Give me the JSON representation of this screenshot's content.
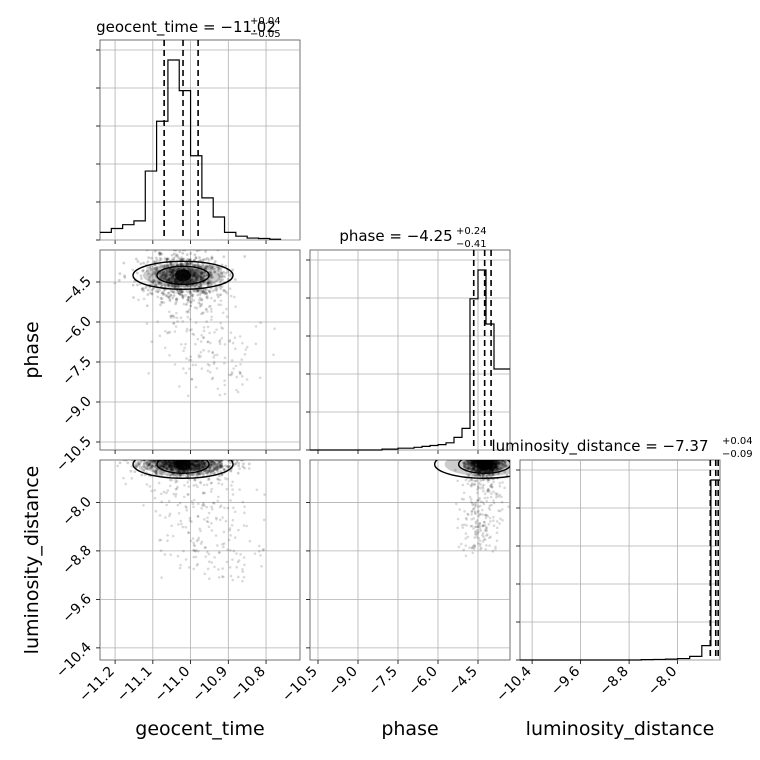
{
  "chart_data": {
    "type": "corner",
    "parameters": [
      "geocent_time",
      "phase",
      "luminosity_distance"
    ],
    "titles": [
      {
        "param": "geocent_time",
        "text": "geocent_time = −11.02",
        "plus": "+0.04",
        "minus": "−0.05"
      },
      {
        "param": "phase",
        "text": "phase = −4.25",
        "plus": "+0.24",
        "minus": "−0.41"
      },
      {
        "param": "luminosity_distance",
        "text": "luminosity_distance = −7.37",
        "plus": "+0.04",
        "minus": "−0.09"
      }
    ],
    "axes": {
      "geocent_time": {
        "range": [
          -11.24,
          -10.71
        ],
        "ticks": [
          -11.2,
          -11.1,
          -11.0,
          -10.9,
          -10.8
        ],
        "tick_labels": [
          "−11.2",
          "−11.1",
          "−11.0",
          "−10.9",
          "−10.8"
        ]
      },
      "phase": {
        "range": [
          -10.8,
          -3.3
        ],
        "ticks": [
          -10.5,
          -9.0,
          -7.5,
          -6.0,
          -4.5
        ],
        "tick_labels": [
          "−10.5",
          "−9.0",
          "−7.5",
          "−6.0",
          "−4.5"
        ]
      },
      "luminosity_distance": {
        "range": [
          -10.6,
          -7.3
        ],
        "ticks": [
          -10.4,
          -9.6,
          -8.8,
          -8.0
        ],
        "tick_labels": [
          "−10.4",
          "−9.6",
          "−8.8",
          "−8.0"
        ]
      }
    },
    "quantiles": {
      "geocent_time": [
        -11.07,
        -11.02,
        -10.98
      ],
      "phase": [
        -4.66,
        -4.25,
        -4.01
      ],
      "luminosity_distance": [
        -7.46,
        -7.37,
        -7.33
      ]
    },
    "histograms": {
      "geocent_time": {
        "edges": [
          -11.24,
          -11.21,
          -11.18,
          -11.15,
          -11.12,
          -11.09,
          -11.06,
          -11.03,
          -11.0,
          -10.97,
          -10.94,
          -10.91,
          -10.88,
          -10.85,
          -10.82,
          -10.79,
          -10.76
        ],
        "counts": [
          2,
          3,
          4,
          5,
          18,
          31,
          47,
          39,
          22,
          11,
          6,
          2,
          1,
          0.5,
          0.4,
          0.2
        ]
      },
      "phase": {
        "edges": [
          -10.8,
          -10.5,
          -10.2,
          -9.9,
          -9.6,
          -9.3,
          -9.0,
          -8.7,
          -8.4,
          -8.1,
          -7.8,
          -7.5,
          -7.2,
          -6.9,
          -6.6,
          -6.3,
          -6.0,
          -5.7,
          -5.4,
          -5.1,
          -4.8,
          -4.5,
          -4.2,
          -3.9,
          -3.6,
          -3.3
        ],
        "counts": [
          0,
          0,
          0,
          0,
          0,
          0,
          0,
          0,
          0,
          0.5,
          0.5,
          1,
          1,
          1.5,
          2,
          2.5,
          3,
          4,
          7,
          12,
          84,
          100,
          70,
          45,
          45
        ]
      },
      "luminosity_distance": {
        "edges": [
          -10.6,
          -10.4,
          -10.2,
          -10.0,
          -9.8,
          -9.6,
          -9.4,
          -9.2,
          -9.0,
          -8.8,
          -8.6,
          -8.4,
          -8.2,
          -8.0,
          -7.8,
          -7.6,
          -7.45,
          -7.3
        ],
        "counts": [
          0,
          0,
          0,
          0,
          0,
          0,
          0,
          0,
          0,
          0,
          0.2,
          0.3,
          0.5,
          0.8,
          2,
          8,
          100
        ]
      }
    },
    "scatter": {
      "geocent_time_vs_phase": {
        "center": [
          -11.02,
          -4.25
        ],
        "spread": [
          0.05,
          0.4
        ],
        "tail_to": [
          -10.92,
          -8.5
        ]
      },
      "geocent_time_vs_luminosity_distance": {
        "center": [
          -11.02,
          -7.37
        ],
        "spread": [
          0.06,
          0.08
        ],
        "tail_to": [
          -10.92,
          -9.2
        ]
      },
      "phase_vs_luminosity_distance": {
        "center": [
          -4.25,
          -7.37
        ],
        "spread": [
          0.3,
          0.08
        ],
        "tail_to": [
          -4.5,
          -8.8
        ]
      }
    }
  }
}
